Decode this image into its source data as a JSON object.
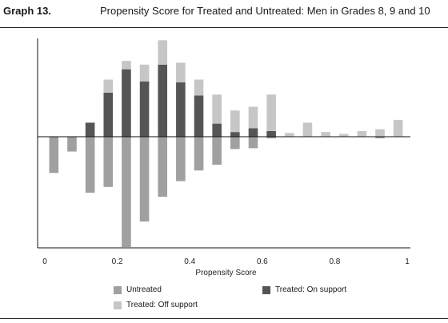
{
  "header": {
    "graph_number": "Graph 13.",
    "title": "Propensity Score for Treated and Untreated: Men in Grades 8, 9 and 10"
  },
  "colors": {
    "untreated": "#a0a0a0",
    "treated_on": "#555555",
    "treated_off": "#c6c6c6",
    "axis": "#111111"
  },
  "chart_data": {
    "type": "bar",
    "xlabel": "Propensity Score",
    "xlim": [
      0,
      1
    ],
    "ylim": [
      -1.35,
      1.05
    ],
    "x_ticks": [
      {
        "value": 0,
        "label": "0"
      },
      {
        "value": 0.2,
        "label": "0.2"
      },
      {
        "value": 0.4,
        "label": "0.4"
      },
      {
        "value": 0.6,
        "label": "0.6"
      },
      {
        "value": 0.8,
        "label": "0.8"
      },
      {
        "value": 1,
        "label": "1"
      }
    ],
    "bin_width": 0.0256,
    "x": [
      0.025,
      0.075,
      0.125,
      0.175,
      0.225,
      0.275,
      0.325,
      0.375,
      0.425,
      0.475,
      0.525,
      0.575,
      0.625,
      0.675,
      0.725,
      0.775,
      0.825,
      0.875,
      0.925,
      0.975
    ],
    "series": [
      {
        "name": "Untreated",
        "values": [
          -0.44,
          -0.18,
          -0.68,
          -0.61,
          -1.34,
          -1.03,
          -0.73,
          -0.54,
          -0.41,
          -0.34,
          -0.15,
          -0.14,
          -0.02,
          0,
          0,
          0,
          0,
          0,
          -0.02,
          0
        ]
      },
      {
        "name": "Treated: On support",
        "values": [
          0,
          0,
          0.15,
          0.47,
          0.72,
          0.59,
          0.77,
          0.58,
          0.44,
          0.14,
          0.05,
          0.09,
          0.06,
          0,
          0,
          0,
          0,
          0,
          0,
          0
        ]
      },
      {
        "name": "Treated: Off support",
        "values": [
          0,
          0,
          0,
          0.14,
          0.09,
          0.18,
          0.26,
          0.21,
          0.17,
          0.31,
          0.23,
          0.23,
          0.39,
          0.04,
          0.15,
          0.05,
          0.03,
          0.06,
          0.08,
          0.18
        ]
      }
    ],
    "legend": [
      "Untreated",
      "Treated: On support",
      "Treated: Off support"
    ],
    "legend_placement": "bottom",
    "grid": false
  }
}
